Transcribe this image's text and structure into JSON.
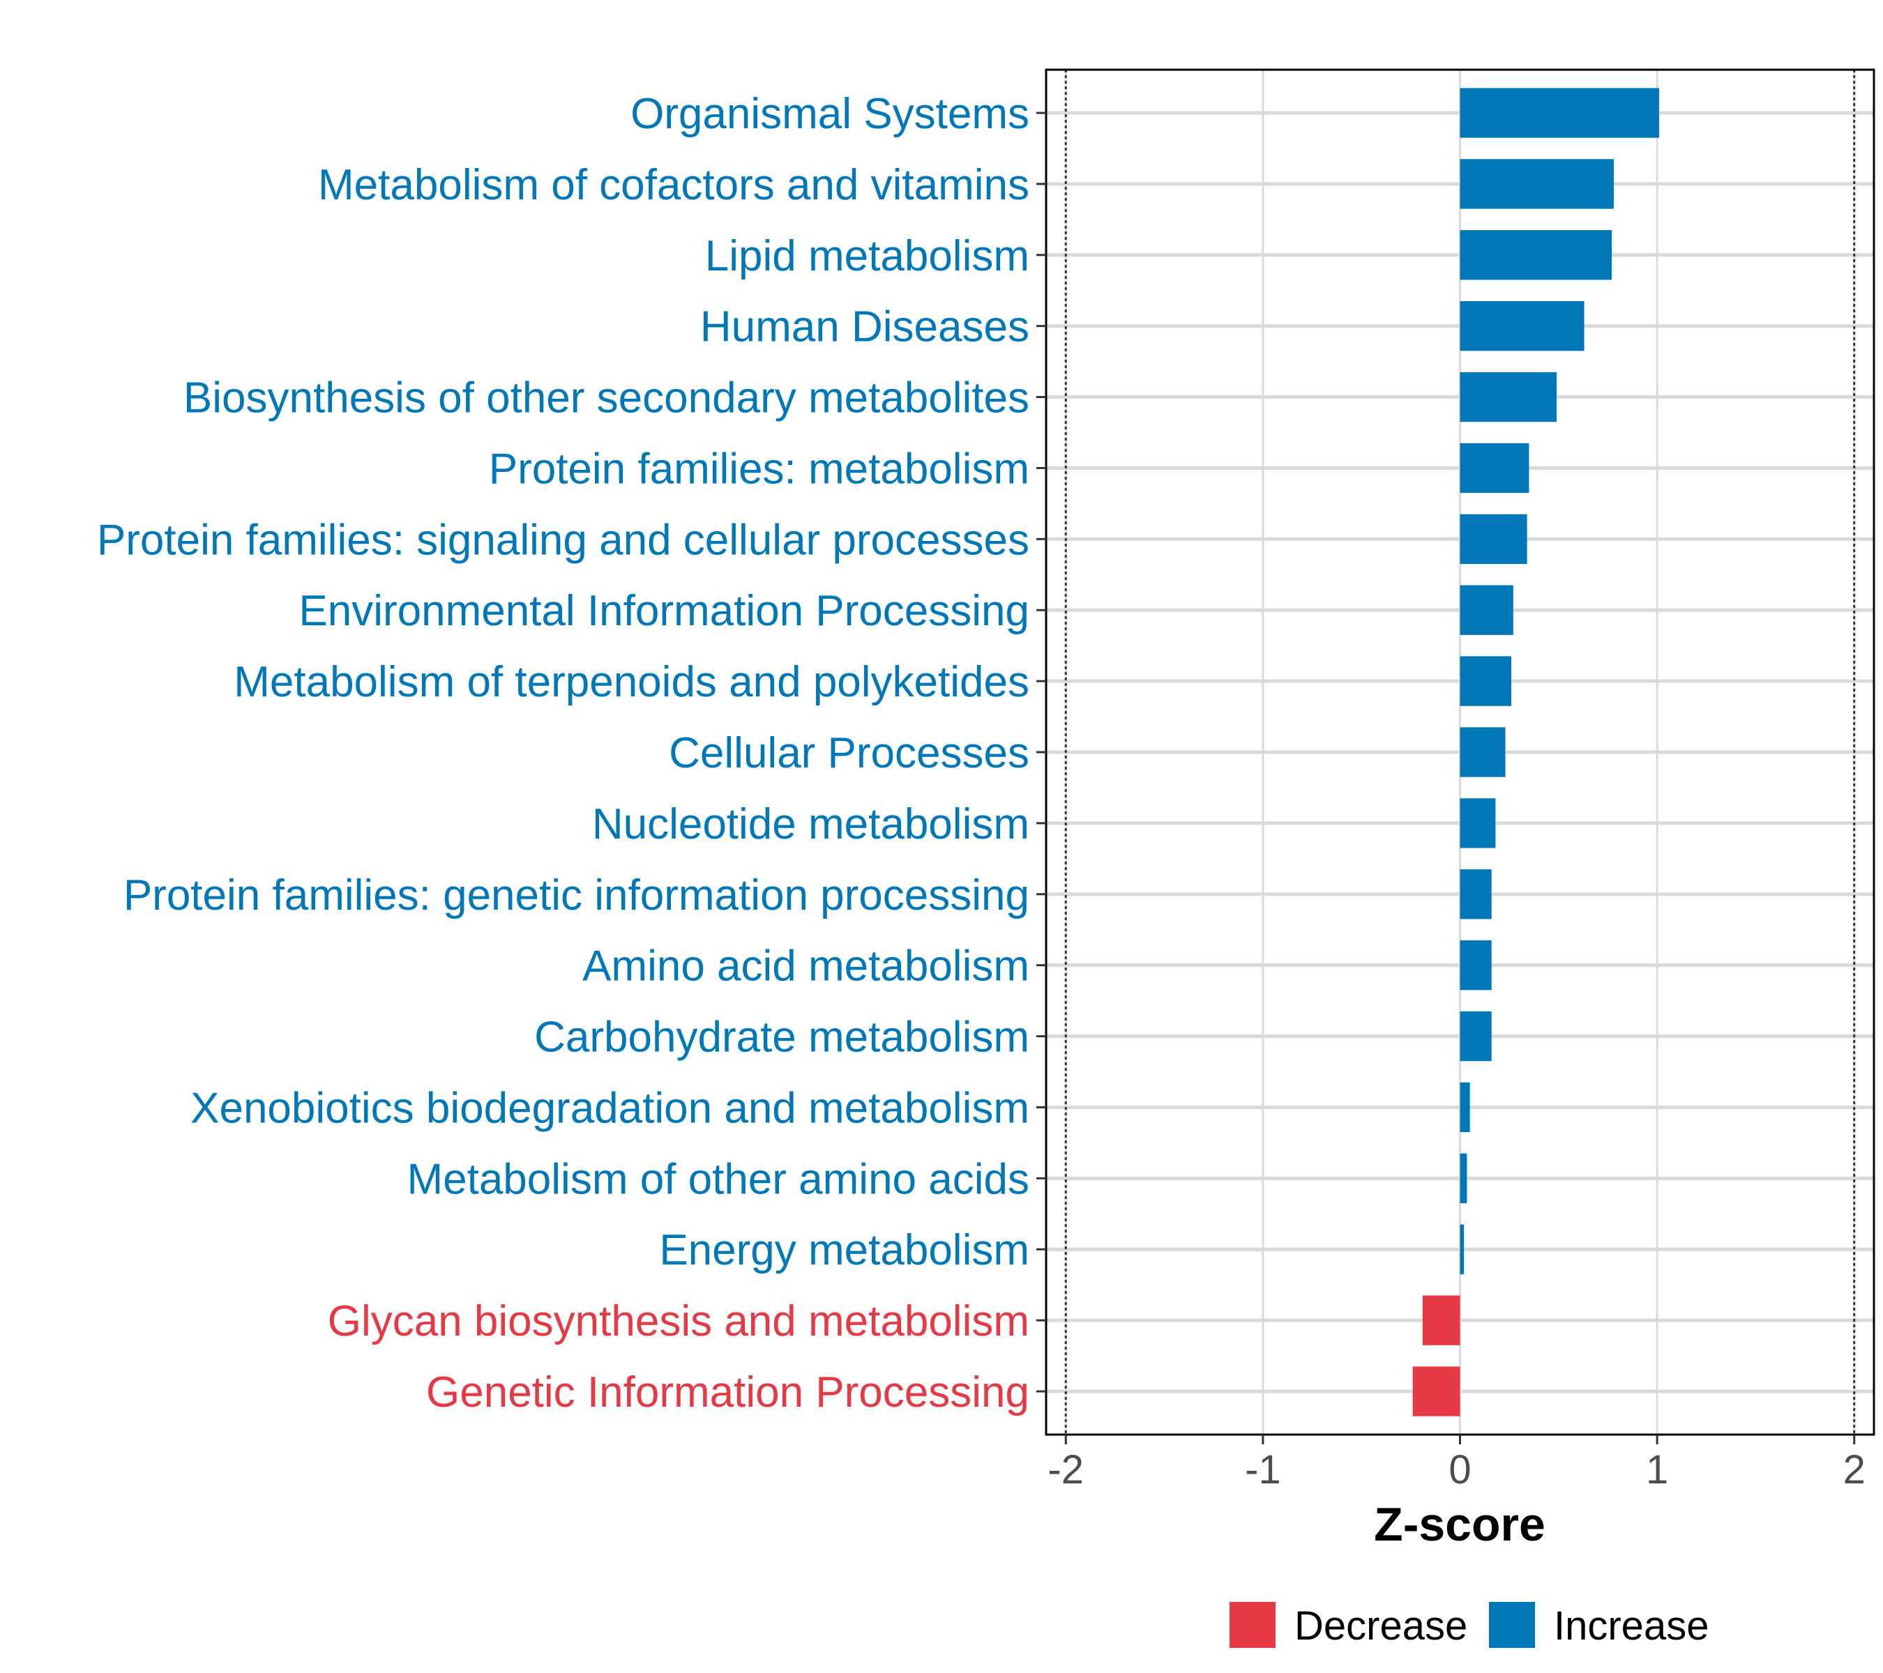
{
  "chart_data": {
    "type": "bar",
    "orientation": "horizontal",
    "title": "",
    "xlabel": "Z-score",
    "ylabel": "",
    "xlim": [
      -2.1,
      2.1
    ],
    "xticks": [
      -2,
      -1,
      0,
      1,
      2
    ],
    "xtick_labels": [
      "-2",
      "-1",
      "0",
      "1",
      "2"
    ],
    "reference_lines": [
      -2,
      2
    ],
    "grid": true,
    "categories": [
      "Organismal Systems",
      "Metabolism of cofactors and vitamins",
      "Lipid metabolism",
      "Human Diseases",
      "Biosynthesis of other secondary metabolites",
      "Protein families: metabolism",
      "Protein families: signaling and cellular processes",
      "Environmental Information Processing",
      "Metabolism of terpenoids and polyketides",
      "Cellular Processes",
      "Nucleotide metabolism",
      "Protein families: genetic information processing",
      "Amino acid metabolism",
      "Carbohydrate metabolism",
      "Xenobiotics biodegradation and metabolism",
      "Metabolism of other amino acids",
      "Energy metabolism",
      "Glycan biosynthesis and metabolism",
      "Genetic Information Processing"
    ],
    "values": [
      1.01,
      0.78,
      0.77,
      0.63,
      0.49,
      0.35,
      0.34,
      0.27,
      0.26,
      0.23,
      0.18,
      0.16,
      0.16,
      0.16,
      0.05,
      0.035,
      0.02,
      -0.19,
      -0.24
    ],
    "legend": {
      "position": "bottom",
      "entries": [
        {
          "label": "Decrease",
          "color": "#e63946"
        },
        {
          "label": "Increase",
          "color": "#0077b6"
        }
      ]
    }
  },
  "colors": {
    "increase": "#0077b6",
    "decrease": "#e63946",
    "grid": "#d9d9d9",
    "axis": "#000000"
  }
}
